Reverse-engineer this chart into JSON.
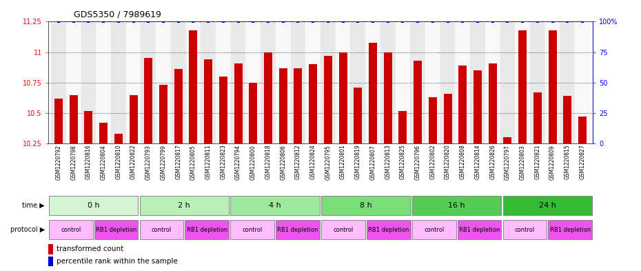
{
  "title": "GDS5350 / 7989619",
  "samples": [
    "GSM1220792",
    "GSM1220798",
    "GSM1220816",
    "GSM1220804",
    "GSM1220810",
    "GSM1220822",
    "GSM1220793",
    "GSM1220799",
    "GSM1220817",
    "GSM1220805",
    "GSM1220811",
    "GSM1220823",
    "GSM1220794",
    "GSM1220800",
    "GSM1220818",
    "GSM1220806",
    "GSM1220812",
    "GSM1220824",
    "GSM1220795",
    "GSM1220801",
    "GSM1220819",
    "GSM1220807",
    "GSM1220813",
    "GSM1220825",
    "GSM1220796",
    "GSM1220802",
    "GSM1220820",
    "GSM1220808",
    "GSM1220814",
    "GSM1220826",
    "GSM1220797",
    "GSM1220803",
    "GSM1220821",
    "GSM1220809",
    "GSM1220815",
    "GSM1220827"
  ],
  "values": [
    10.62,
    10.65,
    10.52,
    10.42,
    10.33,
    10.65,
    10.95,
    10.73,
    10.86,
    11.18,
    10.94,
    10.8,
    10.91,
    10.75,
    11.0,
    10.87,
    10.87,
    10.9,
    10.97,
    11.0,
    10.71,
    11.08,
    11.0,
    10.52,
    10.93,
    10.63,
    10.66,
    10.89,
    10.85,
    10.91,
    10.3,
    11.18,
    10.67,
    11.18,
    10.64,
    10.47
  ],
  "time_groups": [
    {
      "label": "0 h",
      "start": 0,
      "end": 6,
      "color": "#d4f5d4"
    },
    {
      "label": "2 h",
      "start": 6,
      "end": 12,
      "color": "#b8f0b8"
    },
    {
      "label": "4 h",
      "start": 12,
      "end": 18,
      "color": "#9de89d"
    },
    {
      "label": "8 h",
      "start": 18,
      "end": 24,
      "color": "#7add7a"
    },
    {
      "label": "16 h",
      "start": 24,
      "end": 30,
      "color": "#55cc55"
    },
    {
      "label": "24 h",
      "start": 30,
      "end": 36,
      "color": "#33bb33"
    }
  ],
  "protocol_groups": [
    {
      "label": "control",
      "start": 0,
      "end": 3,
      "color": "#ffbbff"
    },
    {
      "label": "RB1 depletion",
      "start": 3,
      "end": 6,
      "color": "#ee55ee"
    },
    {
      "label": "control",
      "start": 6,
      "end": 9,
      "color": "#ffbbff"
    },
    {
      "label": "RB1 depletion",
      "start": 9,
      "end": 12,
      "color": "#ee55ee"
    },
    {
      "label": "control",
      "start": 12,
      "end": 15,
      "color": "#ffbbff"
    },
    {
      "label": "RB1 depletion",
      "start": 15,
      "end": 18,
      "color": "#ee55ee"
    },
    {
      "label": "control",
      "start": 18,
      "end": 21,
      "color": "#ffbbff"
    },
    {
      "label": "RB1 depletion",
      "start": 21,
      "end": 24,
      "color": "#ee55ee"
    },
    {
      "label": "control",
      "start": 24,
      "end": 27,
      "color": "#ffbbff"
    },
    {
      "label": "RB1 depletion",
      "start": 27,
      "end": 30,
      "color": "#ee55ee"
    },
    {
      "label": "control",
      "start": 30,
      "end": 33,
      "color": "#ffbbff"
    },
    {
      "label": "RB1 depletion",
      "start": 33,
      "end": 36,
      "color": "#ee55ee"
    }
  ],
  "ylim": [
    10.25,
    11.25
  ],
  "yticks": [
    10.25,
    10.5,
    10.75,
    11.0,
    11.25
  ],
  "ytick_labels": [
    "10.25",
    "10.5",
    "10.75",
    "11",
    "11.25"
  ],
  "right_ytick_labels": [
    "0",
    "25",
    "50",
    "75",
    "100%"
  ],
  "right_yticks": [
    0,
    25,
    50,
    75,
    100
  ],
  "bar_color": "#cc0000",
  "percentile_color": "#0000cc",
  "bar_width": 0.55,
  "grid_lines": [
    10.5,
    10.75,
    11.0
  ]
}
